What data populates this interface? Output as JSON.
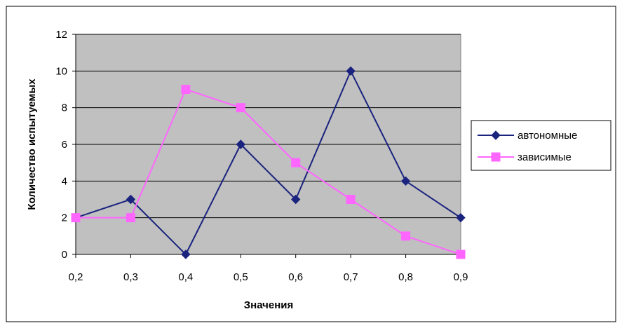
{
  "chart_data": {
    "type": "line",
    "x": [
      "0,2",
      "0,3",
      "0,4",
      "0,5",
      "0,6",
      "0,7",
      "0,8",
      "0,9"
    ],
    "series": [
      {
        "name": "автономные",
        "values": [
          2,
          3,
          0,
          6,
          3,
          10,
          4,
          2
        ],
        "color": "#1a237e",
        "marker": "diamond"
      },
      {
        "name": "зависимые",
        "values": [
          2,
          2,
          9,
          8,
          5,
          3,
          1,
          0
        ],
        "color": "#ff66ff",
        "marker": "square"
      }
    ],
    "xlabel": "Значения",
    "ylabel": "Количество испытуемых",
    "ylim": [
      0,
      12
    ],
    "yticks": [
      "0",
      "2",
      "4",
      "6",
      "8",
      "10",
      "12"
    ],
    "grid": true,
    "plot_background": "#c0c0c0",
    "legend_position": "right"
  }
}
